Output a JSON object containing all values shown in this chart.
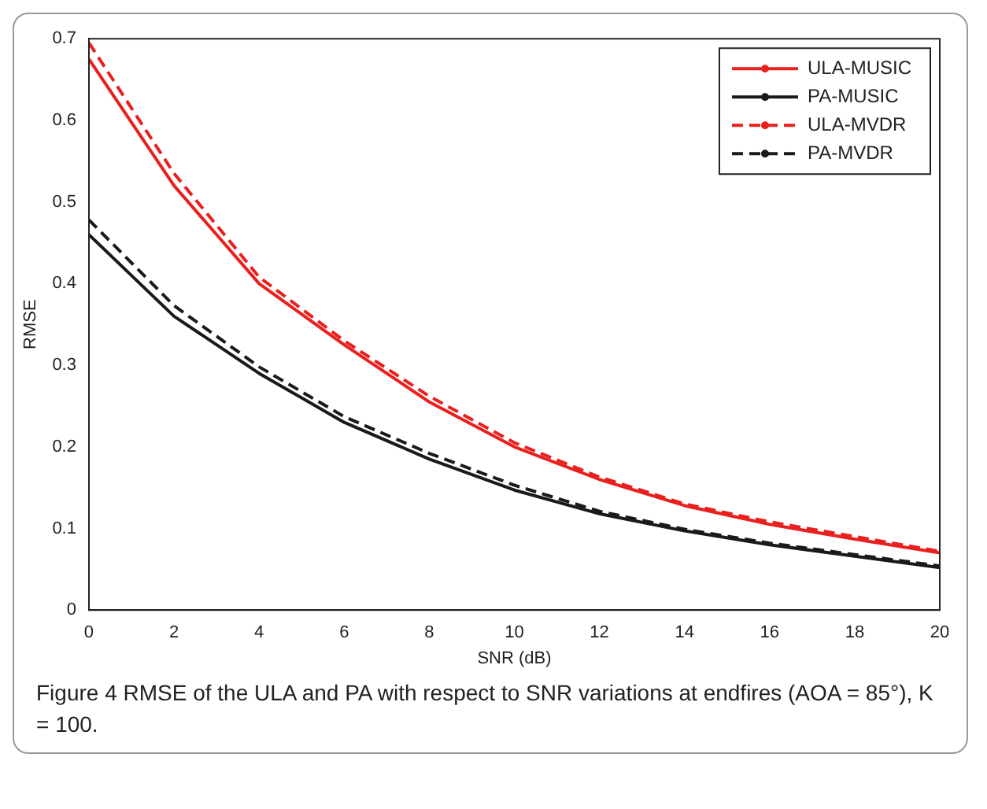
{
  "chart_data": {
    "type": "line",
    "xlabel": "SNR (dB)",
    "ylabel": "RMSE",
    "x": [
      0,
      2,
      4,
      6,
      8,
      10,
      12,
      14,
      16,
      18,
      20
    ],
    "xlim": [
      0,
      20
    ],
    "xticks": [
      0,
      2,
      4,
      6,
      8,
      10,
      12,
      14,
      16,
      18,
      20
    ],
    "ylim": [
      0,
      0.7
    ],
    "yticks": [
      0,
      0.1,
      0.2,
      0.3,
      0.4,
      0.5,
      0.6,
      0.7
    ],
    "grid": false,
    "legend": "top right",
    "series": [
      {
        "name": "ULA-MUSIC",
        "color": "#e8201e",
        "line_style": "solid",
        "values": [
          0.675,
          0.52,
          0.4,
          0.325,
          0.255,
          0.2,
          0.16,
          0.128,
          0.105,
          0.087,
          0.07
        ]
      },
      {
        "name": "PA-MUSIC",
        "color": "#1a1a1a",
        "line_style": "solid",
        "values": [
          0.46,
          0.36,
          0.29,
          0.23,
          0.185,
          0.147,
          0.118,
          0.097,
          0.08,
          0.066,
          0.052
        ]
      },
      {
        "name": "ULA-MVDR",
        "color": "#e8201e",
        "line_style": "dashed",
        "values": [
          0.695,
          0.535,
          0.408,
          0.33,
          0.262,
          0.205,
          0.163,
          0.13,
          0.108,
          0.09,
          0.072
        ]
      },
      {
        "name": "PA-MVDR",
        "color": "#1a1a1a",
        "line_style": "dashed",
        "values": [
          0.478,
          0.373,
          0.298,
          0.237,
          0.192,
          0.153,
          0.121,
          0.099,
          0.082,
          0.068,
          0.054
        ]
      }
    ],
    "annotations": [
      "Figure 4 RMSE of the ULA and PA with respect to SNR variations at endfires (AOA = 85°), K = 100."
    ]
  }
}
